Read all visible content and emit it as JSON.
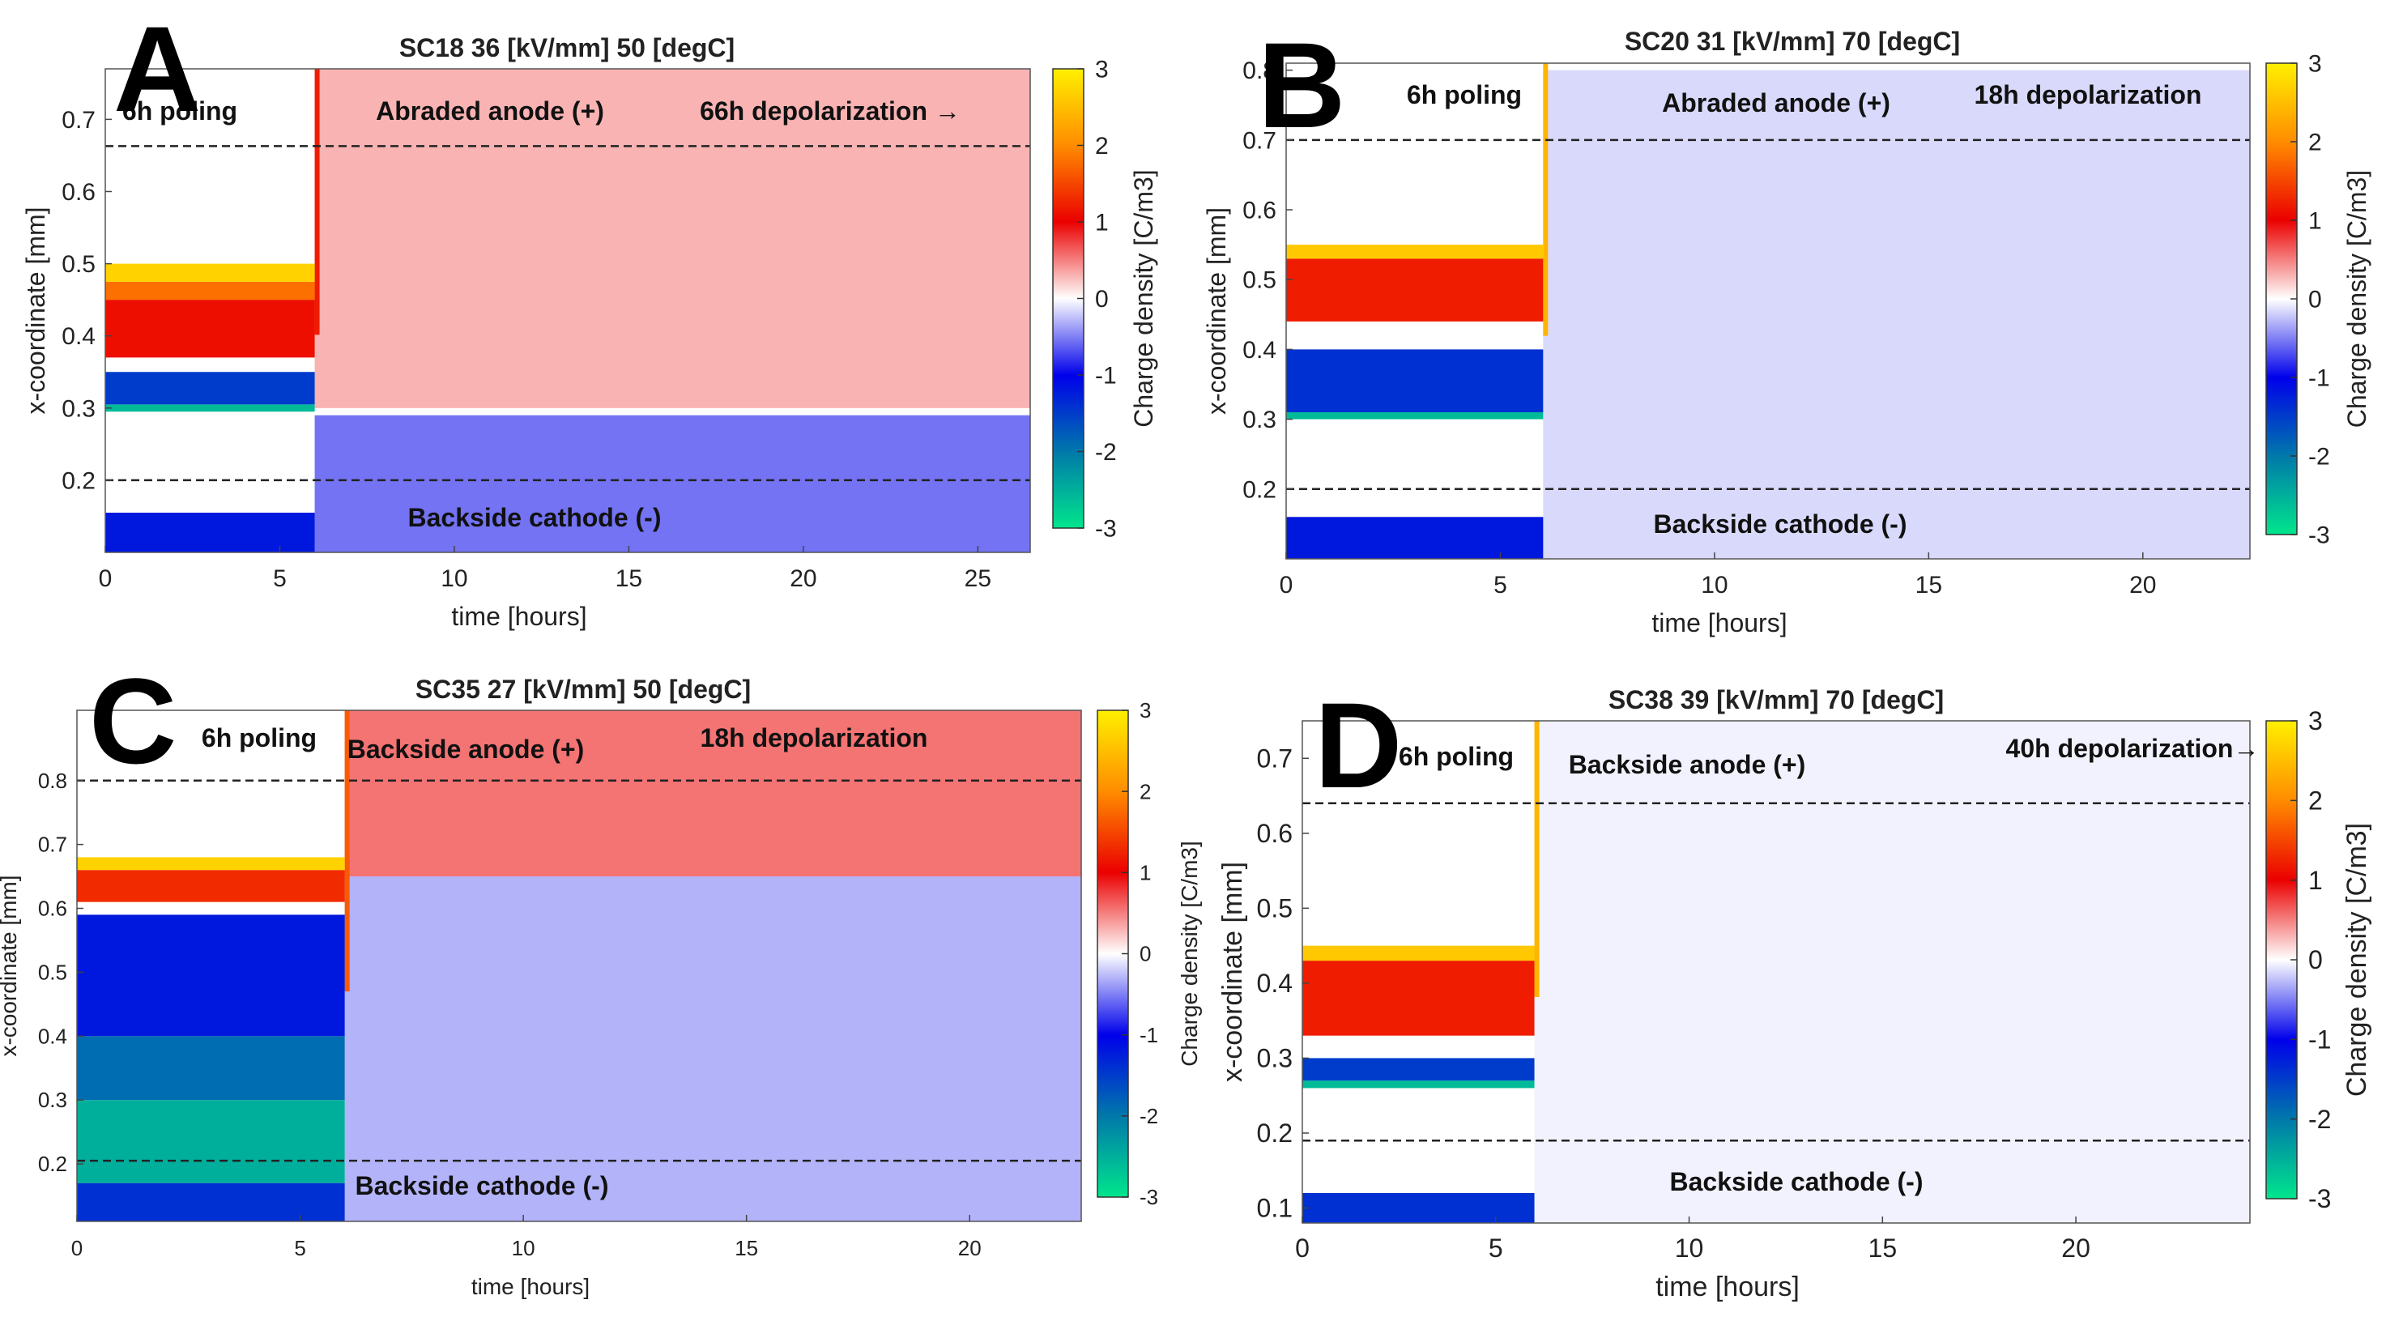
{
  "chart_data": [
    {
      "type": "heatmap",
      "panel_letter": "A",
      "title": "SC18 36 [kV/mm] 50 [degC]",
      "xlabel": "time [hours]",
      "ylabel": "x-coordinate [mm]",
      "colorbar_label": "Charge density [C/m3]",
      "xlim": [
        0,
        26.5
      ],
      "ylim": [
        0.1,
        0.77
      ],
      "x_ticks": [
        0,
        5,
        10,
        15,
        20,
        25
      ],
      "y_ticks": [
        0.2,
        0.3,
        0.4,
        0.5,
        0.6,
        0.7
      ],
      "clim": [
        -3,
        3
      ],
      "colorbar_ticks": [
        -3,
        -2,
        -1,
        0,
        1,
        2,
        3
      ],
      "poling_end_hours": 6,
      "dashed_lines_mm": [
        0.663,
        0.2
      ],
      "annotations": [
        "6h poling",
        "Abraded anode (+)",
        "66h depolarization →",
        "Backside cathode (-)"
      ],
      "poling_bands": [
        {
          "y0": 0.1,
          "y1": 0.155,
          "value": -1.2
        },
        {
          "y0": 0.295,
          "y1": 0.305,
          "value": -2.6
        },
        {
          "y0": 0.305,
          "y1": 0.35,
          "value": -1.5
        },
        {
          "y0": 0.37,
          "y1": 0.45,
          "value": 1.1
        },
        {
          "y0": 0.45,
          "y1": 0.475,
          "value": 1.8
        },
        {
          "y0": 0.475,
          "y1": 0.5,
          "value": 2.7
        }
      ],
      "depol_regions": [
        {
          "y0": 0.1,
          "y1": 0.29,
          "value": -0.55
        },
        {
          "y0": 0.3,
          "y1": 0.77,
          "value": 0.3
        }
      ]
    },
    {
      "type": "heatmap",
      "panel_letter": "B",
      "title": "SC20 31 [kV/mm] 70 [degC]",
      "xlabel": "time [hours]",
      "ylabel": "x-coordinate [mm]",
      "colorbar_label": "Charge density [C/m3]",
      "xlim": [
        0,
        22.5
      ],
      "ylim": [
        0.1,
        0.81
      ],
      "x_ticks": [
        0,
        5,
        10,
        15,
        20
      ],
      "y_ticks": [
        0.2,
        0.3,
        0.4,
        0.5,
        0.6,
        0.7,
        0.8
      ],
      "clim": [
        -3,
        3
      ],
      "colorbar_ticks": [
        -3,
        -2,
        -1,
        0,
        1,
        2,
        3
      ],
      "poling_end_hours": 6,
      "dashed_lines_mm": [
        0.7,
        0.2
      ],
      "annotations": [
        "6h poling",
        "Abraded anode (+)",
        "18h depolarization",
        "Backside cathode (-)"
      ],
      "poling_bands": [
        {
          "y0": 0.1,
          "y1": 0.16,
          "value": -1.2
        },
        {
          "y0": 0.3,
          "y1": 0.31,
          "value": -2.6
        },
        {
          "y0": 0.31,
          "y1": 0.4,
          "value": -1.4
        },
        {
          "y0": 0.44,
          "y1": 0.53,
          "value": 1.2
        },
        {
          "y0": 0.53,
          "y1": 0.55,
          "value": 2.6
        }
      ],
      "depol_regions": [
        {
          "y0": 0.1,
          "y1": 0.8,
          "value": -0.15
        }
      ]
    },
    {
      "type": "heatmap",
      "panel_letter": "C",
      "title": "SC35 27 [kV/mm] 50 [degC]",
      "xlabel": "time [hours]",
      "ylabel": "x-coordinate [mm]",
      "colorbar_label": "Charge density [C/m3]",
      "xlim": [
        0,
        22.5
      ],
      "ylim": [
        0.11,
        0.91
      ],
      "x_ticks": [
        0,
        5,
        10,
        15,
        20
      ],
      "y_ticks": [
        0.2,
        0.3,
        0.4,
        0.5,
        0.6,
        0.7,
        0.8
      ],
      "clim": [
        -3,
        3
      ],
      "colorbar_ticks": [
        -3,
        -2,
        -1,
        0,
        1,
        2,
        3
      ],
      "poling_end_hours": 6,
      "dashed_lines_mm": [
        0.8,
        0.205
      ],
      "annotations": [
        "6h poling",
        "Backside anode (+)",
        "18h depolarization",
        "Backside cathode (-)"
      ],
      "poling_bands": [
        {
          "y0": 0.11,
          "y1": 0.17,
          "value": -1.4
        },
        {
          "y0": 0.17,
          "y1": 0.3,
          "value": -2.5
        },
        {
          "y0": 0.3,
          "y1": 0.4,
          "value": -1.9
        },
        {
          "y0": 0.4,
          "y1": 0.59,
          "value": -1.2
        },
        {
          "y0": 0.61,
          "y1": 0.66,
          "value": 1.3
        },
        {
          "y0": 0.66,
          "y1": 0.68,
          "value": 2.7
        }
      ],
      "depol_regions": [
        {
          "y0": 0.11,
          "y1": 0.65,
          "value": -0.3
        },
        {
          "y0": 0.65,
          "y1": 0.91,
          "value": 0.55
        }
      ]
    },
    {
      "type": "heatmap",
      "panel_letter": "D",
      "title": "SC38 39 [kV/mm] 70 [degC]",
      "xlabel": "time [hours]",
      "ylabel": "x-coordinate [mm]",
      "colorbar_label": "Charge density [C/m3]",
      "xlim": [
        0,
        24.5
      ],
      "ylim": [
        0.08,
        0.75
      ],
      "x_ticks": [
        0,
        5,
        10,
        15,
        20
      ],
      "y_ticks": [
        0.1,
        0.2,
        0.3,
        0.4,
        0.5,
        0.6,
        0.7
      ],
      "clim": [
        -3,
        3
      ],
      "colorbar_ticks": [
        -3,
        -2,
        -1,
        0,
        1,
        2,
        3
      ],
      "poling_end_hours": 6,
      "dashed_lines_mm": [
        0.64,
        0.19
      ],
      "annotations": [
        "6h poling",
        "Backside anode (+)",
        "40h depolarization→",
        "Backside cathode (-)"
      ],
      "poling_bands": [
        {
          "y0": 0.08,
          "y1": 0.12,
          "value": -1.4
        },
        {
          "y0": 0.26,
          "y1": 0.27,
          "value": -2.6
        },
        {
          "y0": 0.27,
          "y1": 0.3,
          "value": -1.5
        },
        {
          "y0": 0.33,
          "y1": 0.43,
          "value": 1.2
        },
        {
          "y0": 0.43,
          "y1": 0.45,
          "value": 2.6
        }
      ],
      "depol_regions": [
        {
          "y0": 0.08,
          "y1": 0.75,
          "value": -0.05
        }
      ]
    }
  ]
}
